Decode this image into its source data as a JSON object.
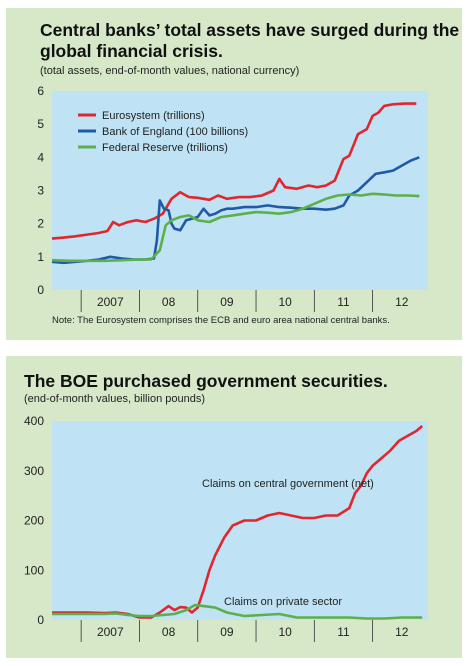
{
  "chart_data": [
    {
      "type": "line",
      "title": "Central banks’ total assets have surged during the global financial crisis.",
      "subtitle": "(total assets, end-of-month values, national currency)",
      "note": "Note: The Eurosystem comprises the ECB and euro area national central banks.",
      "ylim": [
        0,
        6
      ],
      "yticks": [
        0,
        1,
        2,
        3,
        4,
        5,
        6
      ],
      "xlim": [
        2006.5,
        2012.95
      ],
      "xticks": [
        "2007",
        "08",
        "09",
        "10",
        "11",
        "12"
      ],
      "legend_position": "top-left",
      "colors": {
        "Eurosystem (trillions)": "#e0262e",
        "Bank of England (100 billions)": "#1f5aa6",
        "Federal Reserve (trillions)": "#5cb04a"
      },
      "series": [
        {
          "name": "Eurosystem (trillions)",
          "x": [
            2006.5,
            2006.7,
            2006.9,
            2007.1,
            2007.3,
            2007.45,
            2007.55,
            2007.65,
            2007.8,
            2007.95,
            2008.1,
            2008.25,
            2008.4,
            2008.55,
            2008.7,
            2008.85,
            2009.0,
            2009.2,
            2009.35,
            2009.5,
            2009.7,
            2009.9,
            2010.1,
            2010.3,
            2010.4,
            2010.5,
            2010.7,
            2010.9,
            2011.05,
            2011.2,
            2011.35,
            2011.5,
            2011.6,
            2011.75,
            2011.9,
            2012.0,
            2012.1,
            2012.2,
            2012.35,
            2012.55,
            2012.75
          ],
          "y": [
            1.55,
            1.58,
            1.62,
            1.67,
            1.72,
            1.78,
            2.05,
            1.95,
            2.05,
            2.1,
            2.05,
            2.15,
            2.3,
            2.75,
            2.95,
            2.8,
            2.78,
            2.72,
            2.85,
            2.75,
            2.8,
            2.8,
            2.85,
            3.0,
            3.35,
            3.1,
            3.05,
            3.15,
            3.1,
            3.15,
            3.3,
            3.95,
            4.05,
            4.7,
            4.85,
            5.25,
            5.35,
            5.55,
            5.6,
            5.62,
            5.62
          ]
        },
        {
          "name": "Bank of England (100 billions)",
          "x": [
            2006.5,
            2006.7,
            2006.9,
            2007.1,
            2007.3,
            2007.5,
            2007.7,
            2007.9,
            2008.1,
            2008.25,
            2008.3,
            2008.35,
            2008.42,
            2008.5,
            2008.55,
            2008.6,
            2008.7,
            2008.8,
            2008.9,
            2009.0,
            2009.1,
            2009.2,
            2009.3,
            2009.4,
            2009.5,
            2009.6,
            2009.8,
            2010.0,
            2010.2,
            2010.4,
            2010.6,
            2010.8,
            2011.0,
            2011.2,
            2011.35,
            2011.5,
            2011.6,
            2011.75,
            2011.9,
            2012.05,
            2012.2,
            2012.35,
            2012.5,
            2012.65,
            2012.8
          ],
          "y": [
            0.85,
            0.82,
            0.85,
            0.88,
            0.92,
            1.0,
            0.95,
            0.92,
            0.92,
            0.95,
            1.5,
            2.7,
            2.45,
            2.4,
            2.0,
            1.85,
            1.8,
            2.1,
            2.15,
            2.2,
            2.45,
            2.25,
            2.3,
            2.4,
            2.45,
            2.45,
            2.5,
            2.5,
            2.55,
            2.5,
            2.48,
            2.45,
            2.45,
            2.42,
            2.45,
            2.55,
            2.85,
            3.0,
            3.25,
            3.5,
            3.55,
            3.6,
            3.75,
            3.9,
            4.0
          ]
        },
        {
          "name": "Federal Reserve (trillions)",
          "x": [
            2006.5,
            2006.8,
            2007.1,
            2007.4,
            2007.7,
            2008.0,
            2008.2,
            2008.35,
            2008.45,
            2008.55,
            2008.7,
            2008.85,
            2009.0,
            2009.2,
            2009.4,
            2009.6,
            2009.8,
            2010.0,
            2010.2,
            2010.4,
            2010.6,
            2010.8,
            2011.0,
            2011.2,
            2011.4,
            2011.6,
            2011.8,
            2012.0,
            2012.2,
            2012.4,
            2012.6,
            2012.8
          ],
          "y": [
            0.9,
            0.88,
            0.88,
            0.88,
            0.9,
            0.92,
            0.92,
            1.2,
            1.95,
            2.1,
            2.2,
            2.25,
            2.1,
            2.05,
            2.2,
            2.25,
            2.3,
            2.35,
            2.33,
            2.3,
            2.35,
            2.45,
            2.6,
            2.75,
            2.85,
            2.88,
            2.85,
            2.9,
            2.88,
            2.85,
            2.85,
            2.83
          ]
        }
      ]
    },
    {
      "type": "line",
      "title": "The BOE purchased government securities.",
      "subtitle": "(end-of-month values, billion pounds)",
      "ylim": [
        0,
        400
      ],
      "yticks": [
        0,
        100,
        200,
        300,
        400
      ],
      "xlim": [
        2006.5,
        2012.95
      ],
      "xticks": [
        "2007",
        "08",
        "09",
        "10",
        "11",
        "12"
      ],
      "colors": {
        "Claims on central government (net)": "#e0262e",
        "Claims on private sector": "#5cb04a"
      },
      "series": [
        {
          "name": "Claims on central government (net)",
          "label": "Claims on central government (net)",
          "x": [
            2006.5,
            2006.8,
            2007.1,
            2007.4,
            2007.6,
            2007.8,
            2008.0,
            2008.2,
            2008.35,
            2008.5,
            2008.6,
            2008.7,
            2008.8,
            2008.9,
            2009.0,
            2009.1,
            2009.2,
            2009.3,
            2009.45,
            2009.6,
            2009.8,
            2010.0,
            2010.2,
            2010.4,
            2010.6,
            2010.8,
            2011.0,
            2011.2,
            2011.4,
            2011.6,
            2011.7,
            2011.8,
            2011.9,
            2012.0,
            2012.15,
            2012.3,
            2012.45,
            2012.6,
            2012.75,
            2012.85
          ],
          "y": [
            15,
            15,
            15,
            14,
            15,
            12,
            5,
            5,
            15,
            28,
            20,
            26,
            25,
            15,
            25,
            60,
            100,
            130,
            165,
            190,
            200,
            200,
            210,
            215,
            210,
            205,
            205,
            210,
            210,
            225,
            255,
            270,
            295,
            310,
            325,
            340,
            360,
            370,
            380,
            390
          ]
        },
        {
          "name": "Claims on private sector",
          "label": "Claims on private sector",
          "x": [
            2006.5,
            2006.8,
            2007.1,
            2007.4,
            2007.6,
            2007.8,
            2008.0,
            2008.2,
            2008.4,
            2008.6,
            2008.8,
            2008.95,
            2009.1,
            2009.3,
            2009.5,
            2009.8,
            2010.1,
            2010.4,
            2010.7,
            2011.0,
            2011.3,
            2011.6,
            2011.9,
            2012.2,
            2012.5,
            2012.85
          ],
          "y": [
            12,
            12,
            12,
            12,
            13,
            10,
            8,
            8,
            10,
            12,
            20,
            30,
            28,
            25,
            15,
            8,
            10,
            12,
            5,
            5,
            5,
            5,
            3,
            3,
            5,
            5
          ]
        }
      ]
    }
  ]
}
